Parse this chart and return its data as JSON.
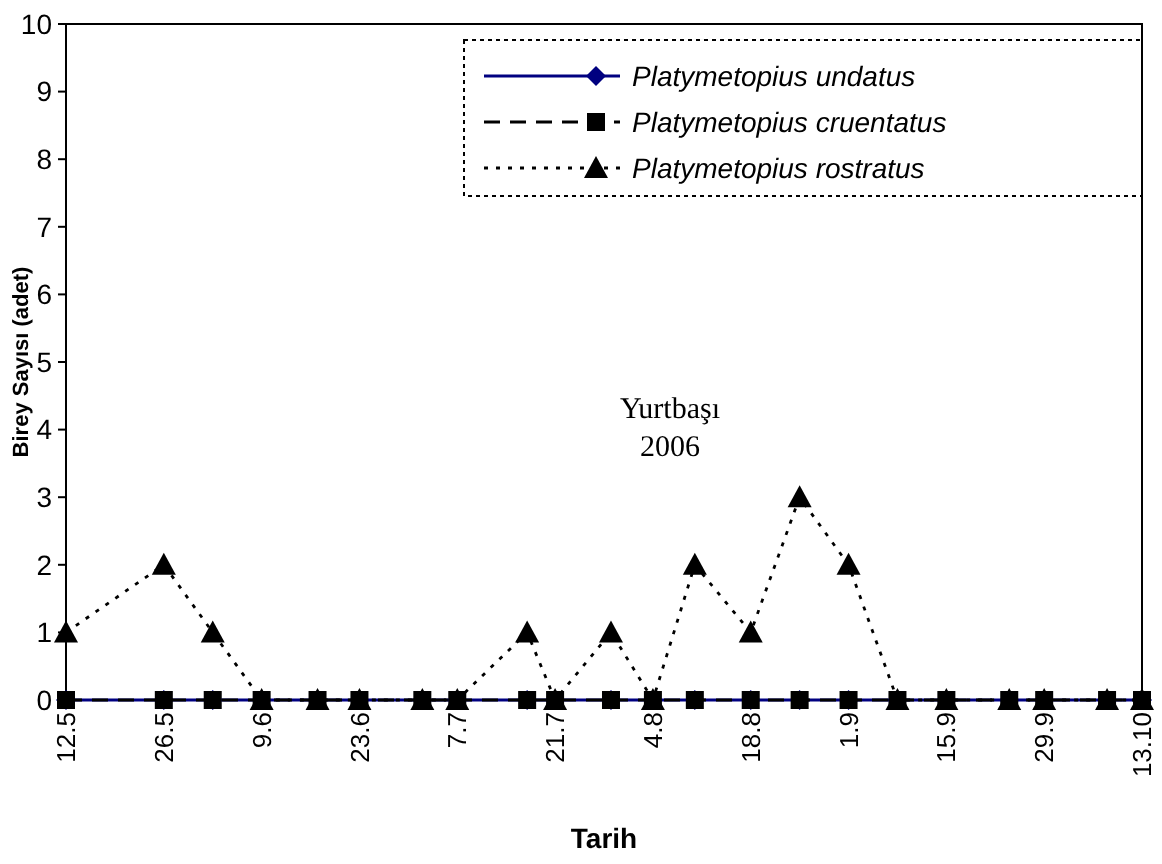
{
  "chart_data": {
    "type": "line",
    "xlabel": "Tarih",
    "ylabel": "Birey Sayısı (adet)",
    "annotations": [
      "Yurtbaşı",
      "2006"
    ],
    "x": [
      "2006-05-12",
      "2006-05-26",
      "2006-06-02",
      "2006-06-09",
      "2006-06-17",
      "2006-06-23",
      "2006-07-02",
      "2006-07-07",
      "2006-07-17",
      "2006-07-21",
      "2006-07-29",
      "2006-08-04",
      "2006-08-10",
      "2006-08-18",
      "2006-08-25",
      "2006-09-01",
      "2006-09-08",
      "2006-09-15",
      "2006-09-24",
      "2006-09-29",
      "2006-10-08",
      "2006-10-13"
    ],
    "series": [
      {
        "name": "Platymetopius undatus",
        "color": "#000080",
        "marker": "diamond",
        "line_style": "solid",
        "values": [
          0,
          0,
          0,
          0,
          0,
          0,
          0,
          0,
          0,
          0,
          0,
          0,
          0,
          0,
          0,
          0,
          0,
          0,
          0,
          0,
          0,
          0
        ]
      },
      {
        "name": "Platymetopius cruentatus",
        "color": "#000000",
        "marker": "square",
        "line_style": "dashed",
        "values": [
          0,
          0,
          0,
          0,
          0,
          0,
          0,
          0,
          0,
          0,
          0,
          0,
          0,
          0,
          0,
          0,
          0,
          0,
          0,
          0,
          0,
          0
        ]
      },
      {
        "name": "Platymetopius rostratus",
        "color": "#000000",
        "marker": "triangle",
        "line_style": "dotted",
        "values": [
          1,
          2,
          1,
          0,
          0,
          0,
          0,
          0,
          1,
          0,
          1,
          0,
          2,
          1,
          3,
          2,
          0,
          0,
          0,
          0,
          0,
          0
        ]
      }
    ],
    "xlim": [
      "2006-05-12",
      "2006-10-13"
    ],
    "xticks": [
      {
        "value": "2006-05-12",
        "label": "12.5"
      },
      {
        "value": "2006-05-26",
        "label": "26.5"
      },
      {
        "value": "2006-06-09",
        "label": "9.6"
      },
      {
        "value": "2006-06-23",
        "label": "23.6"
      },
      {
        "value": "2006-07-07",
        "label": "7.7"
      },
      {
        "value": "2006-07-21",
        "label": "21.7"
      },
      {
        "value": "2006-08-04",
        "label": "4.8"
      },
      {
        "value": "2006-08-18",
        "label": "18.8"
      },
      {
        "value": "2006-09-01",
        "label": "1.9"
      },
      {
        "value": "2006-09-15",
        "label": "15.9"
      },
      {
        "value": "2006-09-29",
        "label": "29.9"
      },
      {
        "value": "2006-10-13",
        "label": "13.10"
      }
    ],
    "ylim": [
      0,
      10
    ],
    "yticks": [
      0,
      1,
      2,
      3,
      4,
      5,
      6,
      7,
      8,
      9,
      10
    ],
    "grid": false,
    "legend": "top right"
  }
}
